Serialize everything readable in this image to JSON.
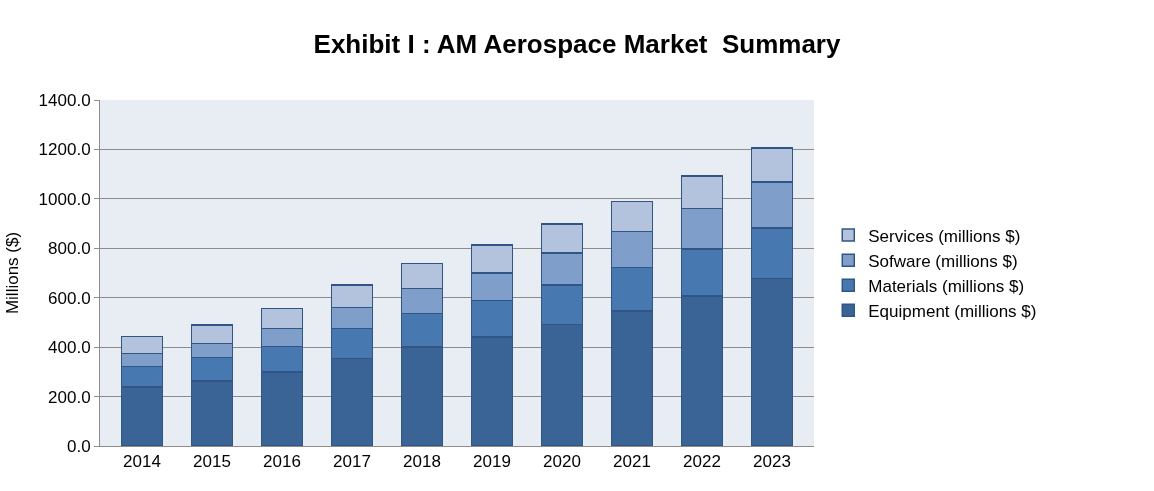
{
  "chart_data": {
    "type": "bar",
    "title": "Exhibit I : AM Aerospace Market  Summary",
    "ylabel": "Millions ($)",
    "stacked": true,
    "categories": [
      "2014",
      "2015",
      "2016",
      "2017",
      "2018",
      "2019",
      "2020",
      "2021",
      "2022",
      "2023"
    ],
    "series": [
      {
        "name": "Equipment (millions $)",
        "color": "#3a6496",
        "values": [
          239,
          264,
          300,
          354,
          400,
          441,
          491,
          546,
          607,
          678
        ]
      },
      {
        "name": "Materials (millions $)",
        "color": "#4878b0",
        "values": [
          83,
          94,
          103,
          121,
          136,
          147,
          161,
          177,
          190,
          205
        ]
      },
      {
        "name": "Sofware (millions $)",
        "color": "#7f9ec9",
        "values": [
          52,
          56,
          72,
          86,
          102,
          113,
          128,
          144,
          165,
          185
        ]
      },
      {
        "name": "Services (millions $)",
        "color": "#b3c3de",
        "values": [
          69,
          76,
          82,
          91,
          101,
          113,
          119,
          123,
          131,
          138
        ]
      }
    ],
    "ylim": [
      0,
      1400
    ],
    "yticks": [
      {
        "value": 0,
        "label": "0.0"
      },
      {
        "value": 200,
        "label": "200.0"
      },
      {
        "value": 400,
        "label": "400.0"
      },
      {
        "value": 600,
        "label": "600.0"
      },
      {
        "value": 800,
        "label": "800.0"
      },
      {
        "value": 1000,
        "label": "1000.0"
      },
      {
        "value": 1200,
        "label": "1200.0"
      },
      {
        "value": 1400,
        "label": "1400.0"
      }
    ],
    "grid": "y",
    "legend": "right"
  }
}
